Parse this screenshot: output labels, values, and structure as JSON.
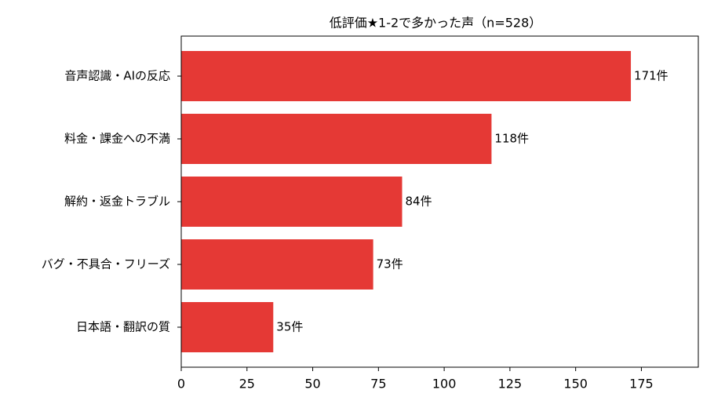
{
  "chart_data": {
    "type": "barh",
    "title": "低評価★1-2で多かった声（n=528）",
    "categories": [
      "音声認識・AIの反応",
      "料金・課金への不満",
      "解約・返金トラブル",
      "バグ・不具合・フリーズ",
      "日本語・翻訳の質"
    ],
    "values": [
      171,
      118,
      84,
      73,
      35
    ],
    "value_labels": [
      "171件",
      "118件",
      "84件",
      "73件",
      "35件"
    ],
    "color": "#e53935",
    "xlim": [
      0,
      196.65
    ],
    "xticks": [
      0,
      25,
      50,
      75,
      100,
      125,
      150,
      175
    ],
    "grid": false
  }
}
